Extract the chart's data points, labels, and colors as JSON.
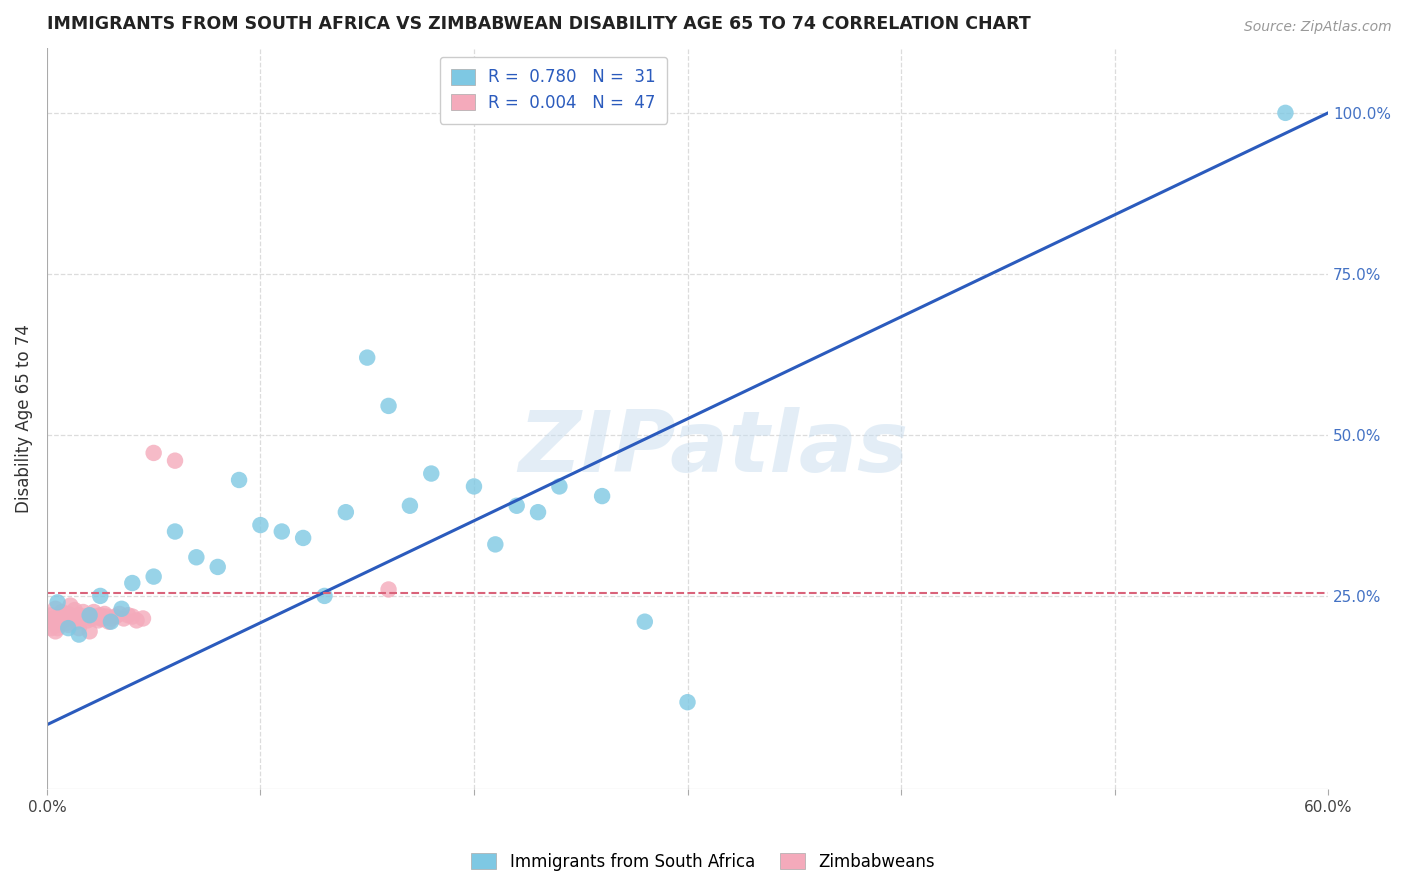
{
  "title": "IMMIGRANTS FROM SOUTH AFRICA VS ZIMBABWEAN DISABILITY AGE 65 TO 74 CORRELATION CHART",
  "source": "Source: ZipAtlas.com",
  "xlabel": "",
  "ylabel": "Disability Age 65 to 74",
  "xlim": [
    0.0,
    0.6
  ],
  "ylim": [
    -0.05,
    1.1
  ],
  "xticks": [
    0.0,
    0.1,
    0.2,
    0.3,
    0.4,
    0.5,
    0.6
  ],
  "xtick_labels": [
    "0.0%",
    "",
    "",
    "",
    "",
    "",
    "60.0%"
  ],
  "yticks_right": [
    0.25,
    0.5,
    0.75,
    1.0
  ],
  "ytick_labels_right": [
    "25.0%",
    "50.0%",
    "75.0%",
    "100.0%"
  ],
  "blue_color": "#7EC8E3",
  "pink_color": "#F4AABB",
  "blue_line_color": "#2B5BBD",
  "pink_line_color": "#D9637A",
  "grid_color": "#DCDCDC",
  "background_color": "#FFFFFF",
  "legend_label_blue": "Immigrants from South Africa",
  "legend_label_pink": "Zimbabweans",
  "blue_line_x0": 0.0,
  "blue_line_y0": 0.05,
  "blue_line_x1": 0.6,
  "blue_line_y1": 1.0,
  "pink_line_x0": 0.0,
  "pink_line_y0": 0.255,
  "pink_line_x1": 0.6,
  "pink_line_y1": 0.255,
  "blue_x": [
    0.005,
    0.01,
    0.015,
    0.02,
    0.025,
    0.03,
    0.035,
    0.04,
    0.05,
    0.06,
    0.07,
    0.08,
    0.09,
    0.1,
    0.11,
    0.12,
    0.13,
    0.14,
    0.15,
    0.16,
    0.17,
    0.18,
    0.2,
    0.21,
    0.22,
    0.23,
    0.24,
    0.26,
    0.28,
    0.3,
    0.58
  ],
  "blue_y": [
    0.24,
    0.2,
    0.19,
    0.22,
    0.25,
    0.21,
    0.23,
    0.27,
    0.28,
    0.35,
    0.31,
    0.295,
    0.43,
    0.36,
    0.35,
    0.34,
    0.25,
    0.38,
    0.62,
    0.545,
    0.39,
    0.44,
    0.42,
    0.33,
    0.39,
    0.38,
    0.42,
    0.405,
    0.21,
    0.085,
    1.0
  ],
  "pink_x": [
    0.002,
    0.003,
    0.004,
    0.005,
    0.006,
    0.007,
    0.008,
    0.009,
    0.01,
    0.011,
    0.012,
    0.013,
    0.014,
    0.015,
    0.016,
    0.017,
    0.018,
    0.019,
    0.02,
    0.021,
    0.022,
    0.023,
    0.024,
    0.025,
    0.026,
    0.027,
    0.028,
    0.029,
    0.03,
    0.032,
    0.034,
    0.036,
    0.038,
    0.04,
    0.042,
    0.045,
    0.05,
    0.06,
    0.002,
    0.003,
    0.004,
    0.005,
    0.01,
    0.015,
    0.02,
    0.025,
    0.16
  ],
  "pink_y": [
    0.22,
    0.215,
    0.23,
    0.205,
    0.218,
    0.225,
    0.212,
    0.208,
    0.222,
    0.235,
    0.215,
    0.228,
    0.21,
    0.22,
    0.215,
    0.225,
    0.218,
    0.212,
    0.22,
    0.215,
    0.225,
    0.218,
    0.212,
    0.22,
    0.215,
    0.222,
    0.218,
    0.21,
    0.215,
    0.218,
    0.222,
    0.215,
    0.22,
    0.218,
    0.212,
    0.215,
    0.472,
    0.46,
    0.2,
    0.21,
    0.195,
    0.2,
    0.205,
    0.2,
    0.195,
    0.215,
    0.26
  ],
  "watermark_text": "ZIPatlas",
  "figsize": [
    14.06,
    8.92
  ],
  "dpi": 100
}
